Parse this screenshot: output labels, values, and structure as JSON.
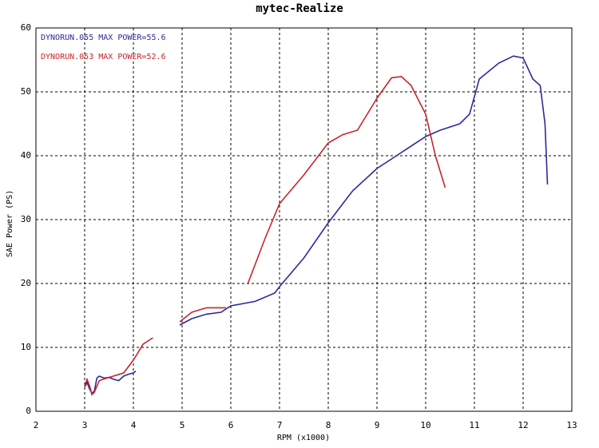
{
  "chart_data": {
    "type": "line",
    "title": "mytec-Realize",
    "x_label": "RPM (x1000)",
    "y_label": "SAE Power (PS)",
    "xlim": [
      2,
      13
    ],
    "xticks": [
      2,
      3,
      4,
      5,
      6,
      7,
      8,
      9,
      10,
      11,
      12,
      13
    ],
    "ylim": [
      0,
      60
    ],
    "yticks": [
      0,
      10,
      20,
      30,
      40,
      50,
      60
    ],
    "grid": true,
    "legend": "top-left",
    "series": [
      {
        "name": "DYNORUN.055  MAX POWER=55.6",
        "color": "#2b2b9a",
        "x": [
          3.0,
          3.05,
          3.1,
          3.15,
          3.2,
          3.25,
          3.3,
          3.4,
          3.5,
          3.6,
          3.7,
          3.8,
          3.9,
          4.0,
          4.05,
          4.5,
          4.95,
          5.2,
          5.5,
          5.8,
          6.0,
          6.5,
          6.9,
          7.0,
          7.5,
          8.0,
          8.5,
          9.0,
          9.5,
          10.0,
          10.3,
          10.7,
          10.9,
          11.1,
          11.5,
          11.8,
          12.0,
          12.2,
          12.35,
          12.45,
          12.5
        ],
        "values": [
          3.8,
          4.5,
          3.5,
          2.8,
          3.2,
          5.2,
          5.5,
          5.2,
          5.3,
          5.0,
          4.8,
          5.5,
          5.8,
          6.0,
          6.3,
          null,
          13.5,
          14.5,
          15.2,
          15.5,
          16.5,
          17.2,
          18.5,
          19.5,
          24.0,
          29.5,
          34.5,
          38.0,
          40.5,
          43.0,
          44.0,
          45.0,
          46.5,
          52.0,
          54.5,
          55.6,
          55.3,
          52.0,
          51.0,
          45.0,
          35.5
        ]
      },
      {
        "name": "DYNORUN.053  MAX POWER=52.6",
        "color": "#c8242c",
        "x": [
          3.0,
          3.05,
          3.1,
          3.15,
          3.2,
          3.3,
          3.5,
          3.8,
          4.0,
          4.2,
          4.4,
          4.7,
          4.95,
          5.2,
          5.5,
          5.9,
          6.1,
          6.35,
          6.7,
          7.0,
          7.5,
          8.0,
          8.3,
          8.6,
          9.0,
          9.3,
          9.5,
          9.7,
          10.0,
          10.2,
          10.4
        ],
        "values": [
          4.0,
          5.0,
          4.0,
          2.6,
          3.0,
          4.8,
          5.3,
          6.0,
          8.0,
          10.5,
          11.5,
          null,
          14.0,
          15.5,
          16.2,
          16.2,
          null,
          20.0,
          27.0,
          32.5,
          37.0,
          42.0,
          43.3,
          44.0,
          49.0,
          52.2,
          52.4,
          51.0,
          46.5,
          40.0,
          35.0
        ]
      }
    ]
  }
}
